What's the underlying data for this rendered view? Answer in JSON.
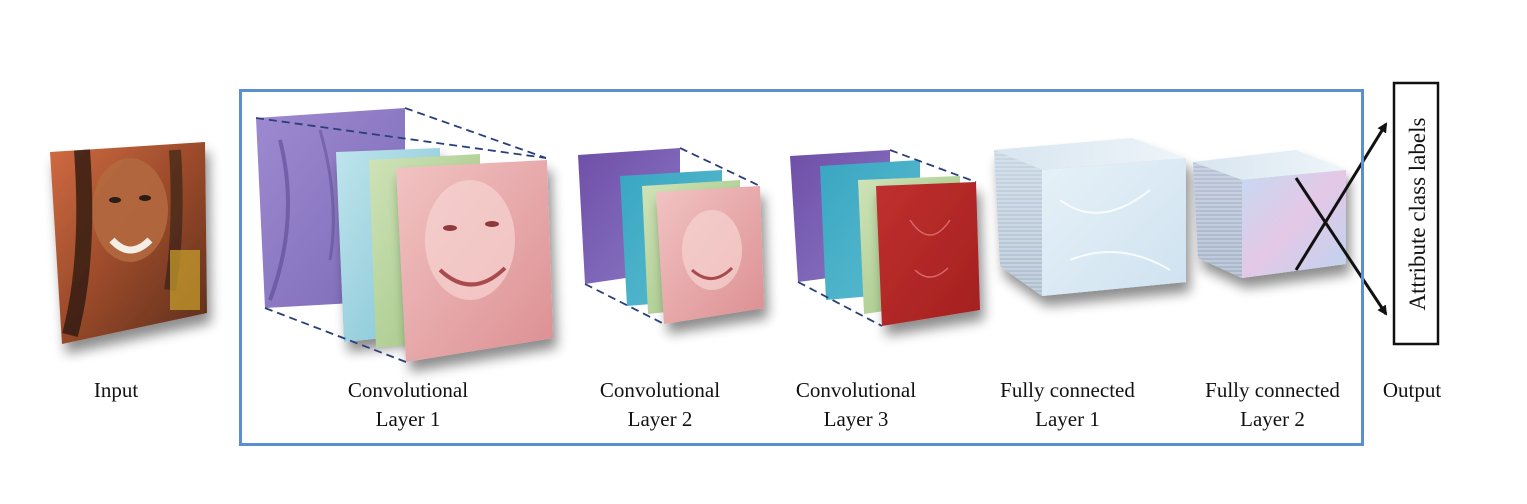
{
  "labels": {
    "input": "Input",
    "conv1_line1": "Convolutional",
    "conv1_line2": "Layer 1",
    "conv2_line1": "Convolutional",
    "conv2_line2": "Layer 2",
    "conv3_line1": "Convolutional",
    "conv3_line2": "Layer 3",
    "fc1_line1": "Fully connected",
    "fc1_line2": "Layer 1",
    "fc2_line1": "Fully connected",
    "fc2_line2": "Layer 2",
    "output": "Output",
    "output_box": "Attribute class labels"
  },
  "colors": {
    "network_box_border": "#5b8fd0",
    "purple_map": "#8a78c4",
    "cyan_map": "#4bb3c8",
    "green_map": "#a8c98c",
    "pink_map": "#e39a9c",
    "red_map": "#b8282a",
    "fc_block": "#dbe9f4"
  }
}
